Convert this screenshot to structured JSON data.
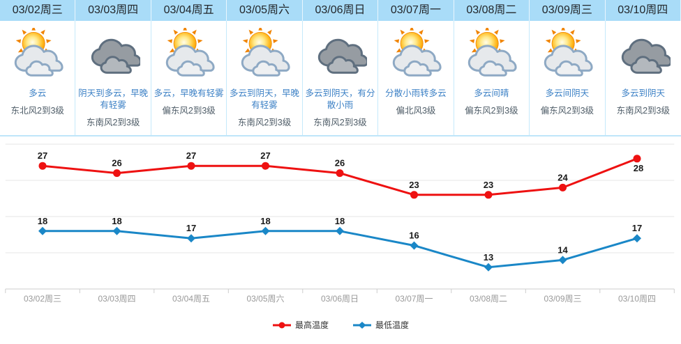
{
  "forecast": {
    "days": [
      {
        "date": "03/02周三",
        "icon": "sun-cloud",
        "desc": "多云",
        "wind": "东北风2到3级"
      },
      {
        "date": "03/03周四",
        "icon": "overcast",
        "desc": "阴天到多云，早晚有轻雾",
        "wind": "东南风2到3级"
      },
      {
        "date": "03/04周五",
        "icon": "sun-cloud",
        "desc": "多云，早晚有轻雾",
        "wind": "偏东风2到3级"
      },
      {
        "date": "03/05周六",
        "icon": "sun-cloud",
        "desc": "多云到阴天，早晚有轻雾",
        "wind": "东南风2到3级"
      },
      {
        "date": "03/06周日",
        "icon": "overcast",
        "desc": "多云到阴天，有分散小雨",
        "wind": "东南风2到3级"
      },
      {
        "date": "03/07周一",
        "icon": "sun-cloud",
        "desc": "分散小雨转多云",
        "wind": "偏北风3级"
      },
      {
        "date": "03/08周二",
        "icon": "sun-cloud",
        "desc": "多云间晴",
        "wind": "偏东风2到3级"
      },
      {
        "date": "03/09周三",
        "icon": "sun-cloud",
        "desc": "多云间阴天",
        "wind": "偏东风2到3级"
      },
      {
        "date": "03/10周四",
        "icon": "overcast",
        "desc": "多云到阴天",
        "wind": "东南风2到3级"
      }
    ]
  },
  "chart_data": {
    "type": "line",
    "x": [
      "03/02周三",
      "03/03周四",
      "03/04周五",
      "03/05周六",
      "03/06周日",
      "03/07周一",
      "03/08周二",
      "03/09周三",
      "03/10周四"
    ],
    "series": [
      {
        "name": "最高温度",
        "color": "#ee1111",
        "marker": "circle",
        "values": [
          27,
          26,
          27,
          27,
          26,
          23,
          23,
          24,
          28
        ],
        "label_below_indices": [
          8
        ]
      },
      {
        "name": "最低温度",
        "color": "#1a87c7",
        "marker": "diamond",
        "values": [
          18,
          18,
          17,
          18,
          18,
          16,
          13,
          14,
          17
        ],
        "label_below_indices": []
      }
    ],
    "ylim": [
      10,
      30
    ],
    "gridline_values": [
      30,
      25,
      20,
      15
    ],
    "grid": true,
    "y_axis_labels_visible": false,
    "data_labels": true,
    "legend_position": "bottom-center"
  },
  "icons": {
    "sun-cloud": "sun-behind-clouds-icon",
    "overcast": "dark-clouds-icon"
  },
  "colors": {
    "header_bg": "#a9dcf8",
    "divider": "#bfe6fa",
    "date_text": "#23272b",
    "desc_text": "#3e82c6",
    "wind_text": "#4d5b66",
    "grid_line": "#e6e6e6",
    "axis_line": "#cccccc",
    "tick_label": "#999999",
    "data_label": "#1a1a1a",
    "high_series": "#ee1111",
    "low_series": "#1a87c7"
  }
}
